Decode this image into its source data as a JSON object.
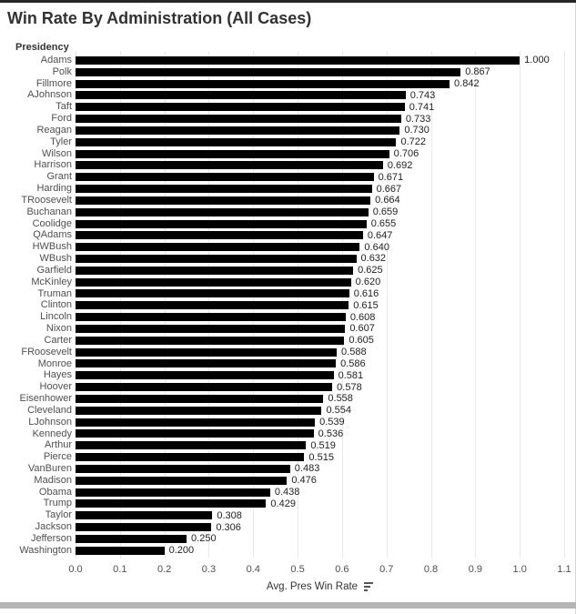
{
  "window": {
    "field_label": "Presidency",
    "colors": {
      "bar": "#000000",
      "gridline": "#e9e9e9",
      "category_label": "#4f4f4f",
      "value_label": "#1e1e1e",
      "title": "#323232",
      "top_border": "#262626",
      "scrollbar_track": "#b5b5b5"
    },
    "icons": {
      "axis_sort": "sort-descending-icon"
    }
  },
  "chart_data": {
    "type": "bar",
    "orientation": "horizontal",
    "title": "Win Rate By Administration (All Cases)",
    "field_label": "Presidency",
    "xlabel": "Avg. Pres Win Rate",
    "xlim": [
      0,
      1.1
    ],
    "x_ticks": [
      "0.0",
      "0.1",
      "0.2",
      "0.3",
      "0.4",
      "0.5",
      "0.6",
      "0.7",
      "0.8",
      "0.9",
      "1.0",
      "1.1"
    ],
    "grid": true,
    "sort": "descending",
    "legend": "none",
    "categories": [
      "Adams",
      "Polk",
      "Fillmore",
      "AJohnson",
      "Taft",
      "Ford",
      "Reagan",
      "Tyler",
      "Wilson",
      "Harrison",
      "Grant",
      "Harding",
      "TRoosevelt",
      "Buchanan",
      "Coolidge",
      "QAdams",
      "HWBush",
      "WBush",
      "Garfield",
      "McKinley",
      "Truman",
      "Clinton",
      "Lincoln",
      "Nixon",
      "Carter",
      "FRoosevelt",
      "Monroe",
      "Hayes",
      "Hoover",
      "Eisenhower",
      "Cleveland",
      "LJohnson",
      "Kennedy",
      "Arthur",
      "Pierce",
      "VanBuren",
      "Madison",
      "Obama",
      "Trump",
      "Taylor",
      "Jackson",
      "Jefferson",
      "Washington"
    ],
    "values": [
      1.0,
      0.867,
      0.842,
      0.743,
      0.741,
      0.733,
      0.73,
      0.722,
      0.706,
      0.692,
      0.671,
      0.667,
      0.664,
      0.659,
      0.655,
      0.647,
      0.64,
      0.632,
      0.625,
      0.62,
      0.616,
      0.615,
      0.608,
      0.607,
      0.605,
      0.588,
      0.586,
      0.581,
      0.578,
      0.558,
      0.554,
      0.539,
      0.536,
      0.519,
      0.515,
      0.483,
      0.476,
      0.438,
      0.429,
      0.308,
      0.306,
      0.25,
      0.2
    ],
    "value_labels": [
      "1.000",
      "0.867",
      "0.842",
      "0.743",
      "0.741",
      "0.733",
      "0.730",
      "0.722",
      "0.706",
      "0.692",
      "0.671",
      "0.667",
      "0.664",
      "0.659",
      "0.655",
      "0.647",
      "0.640",
      "0.632",
      "0.625",
      "0.620",
      "0.616",
      "0.615",
      "0.608",
      "0.607",
      "0.605",
      "0.588",
      "0.586",
      "0.581",
      "0.578",
      "0.558",
      "0.554",
      "0.539",
      "0.536",
      "0.519",
      "0.515",
      "0.483",
      "0.476",
      "0.438",
      "0.429",
      "0.308",
      "0.306",
      "0.250",
      "0.200"
    ]
  }
}
